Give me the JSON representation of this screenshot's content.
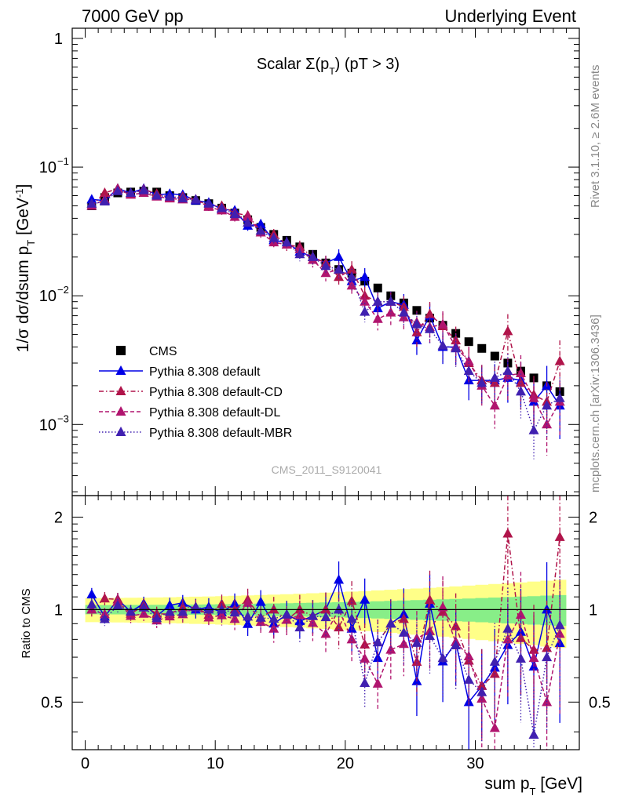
{
  "header": {
    "left": "7000 GeV pp",
    "right": "Underlying Event"
  },
  "side": {
    "rivet": "Rivet 3.1.10, ≥ 2.6M events",
    "mcplots": "mcplots.cern.ch [arXiv:1306.3436]"
  },
  "chart_data": {
    "type": "scatter",
    "title": "Scalar Σ(p_T) (pT > 3)",
    "watermark": "CMS_2011_S9120041",
    "xlabel": "sum p_T [GeV]",
    "ylabel": "1/σ dσ/dsum p_T [GeV^-1]",
    "ratio_ylabel": "Ratio to CMS",
    "xlim": [
      -1,
      38
    ],
    "ylim": [
      0.00028,
      1.2
    ],
    "yscale": "log",
    "ratio_ylim": [
      0.35,
      2.35
    ],
    "xticks": [
      0,
      10,
      20,
      30
    ],
    "yticks_main": [
      "1",
      "10^-1",
      "10^-2",
      "10^-3"
    ],
    "yticks_ratio": [
      "0.5",
      "1",
      "2"
    ],
    "legend_position": "lower-left",
    "series": [
      {
        "name": "CMS",
        "style": "data",
        "color": "#000000",
        "x": [
          0.5,
          1.5,
          2.5,
          3.5,
          4.5,
          5.5,
          6.5,
          7.5,
          8.5,
          9.5,
          10.5,
          11.5,
          12.5,
          13.5,
          14.5,
          15.5,
          16.5,
          17.5,
          18.5,
          19.5,
          20.5,
          21.5,
          22.5,
          23.5,
          24.5,
          25.5,
          26.5,
          27.5,
          28.5,
          29.5,
          30.5,
          31.5,
          32.5,
          33.5,
          34.5,
          35.5,
          36.5
        ],
        "y": [
          0.05,
          0.058,
          0.063,
          0.064,
          0.065,
          0.064,
          0.06,
          0.058,
          0.055,
          0.052,
          0.048,
          0.044,
          0.039,
          0.034,
          0.03,
          0.027,
          0.024,
          0.021,
          0.018,
          0.016,
          0.015,
          0.013,
          0.0115,
          0.01,
          0.0088,
          0.0077,
          0.0067,
          0.0059,
          0.0051,
          0.0044,
          0.0039,
          0.0034,
          0.003,
          0.0026,
          0.0023,
          0.002,
          0.0018
        ]
      },
      {
        "name": "Pythia 8.308 default",
        "style": "solid",
        "color": "#0000e6",
        "y": [
          0.056,
          0.055,
          0.068,
          0.063,
          0.068,
          0.061,
          0.062,
          0.061,
          0.055,
          0.053,
          0.047,
          0.046,
          0.035,
          0.036,
          0.027,
          0.026,
          0.022,
          0.02,
          0.018,
          0.02,
          0.013,
          0.014,
          0.008,
          0.009,
          0.0085,
          0.0045,
          0.007,
          0.004,
          0.004,
          0.0022,
          0.0022,
          0.0022,
          0.0023,
          0.0022,
          0.0015,
          0.002,
          0.0014
        ]
      },
      {
        "name": "Pythia 8.308 default-CD",
        "style": "dashdot",
        "color": "#b0144a",
        "y": [
          0.05,
          0.063,
          0.068,
          0.062,
          0.067,
          0.062,
          0.058,
          0.059,
          0.056,
          0.05,
          0.05,
          0.044,
          0.042,
          0.032,
          0.03,
          0.025,
          0.024,
          0.02,
          0.018,
          0.014,
          0.016,
          0.01,
          0.009,
          0.009,
          0.0082,
          0.0052,
          0.0072,
          0.0058,
          0.0045,
          0.003,
          0.0022,
          0.0021,
          0.0053,
          0.0021,
          0.0017,
          0.0015,
          0.0031
        ]
      },
      {
        "name": "Pythia 8.308 default-DL",
        "style": "dashed",
        "color": "#b0146e",
        "y": [
          0.05,
          0.056,
          0.067,
          0.061,
          0.063,
          0.059,
          0.057,
          0.056,
          0.056,
          0.049,
          0.046,
          0.041,
          0.041,
          0.031,
          0.026,
          0.025,
          0.023,
          0.019,
          0.015,
          0.016,
          0.012,
          0.009,
          0.0066,
          0.0074,
          0.0068,
          0.0062,
          0.0057,
          0.006,
          0.004,
          0.0031,
          0.002,
          0.0014,
          0.0024,
          0.0025,
          0.0016,
          0.001,
          0.0015
        ]
      },
      {
        "name": "Pythia 8.308 default-MBR",
        "style": "dotted",
        "color": "#4020b0",
        "y": [
          0.052,
          0.054,
          0.065,
          0.063,
          0.066,
          0.06,
          0.059,
          0.057,
          0.056,
          0.052,
          0.048,
          0.043,
          0.037,
          0.032,
          0.028,
          0.026,
          0.021,
          0.02,
          0.017,
          0.016,
          0.014,
          0.0075,
          0.009,
          0.009,
          0.0074,
          0.006,
          0.0055,
          0.0041,
          0.0039,
          0.0026,
          0.0021,
          0.0023,
          0.0026,
          0.0018,
          0.0009,
          0.0014,
          0.0016
        ]
      }
    ]
  }
}
